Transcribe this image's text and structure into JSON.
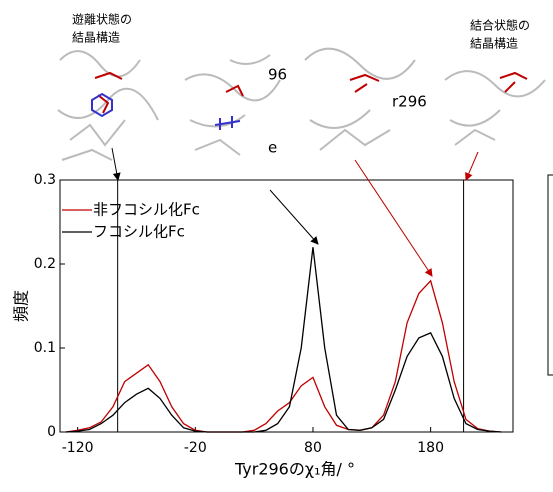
{
  "chart_data": {
    "type": "line",
    "x_label": "Tyr296のχ₁角/ °",
    "y_label": "頻度",
    "annotations": [
      "遊離状態の",
      "結晶構造",
      "結合状態の",
      "結晶構造",
      "96",
      "r296",
      "e"
    ],
    "x": [
      -130,
      -120,
      -110,
      -100,
      -90,
      -80,
      -70,
      -60,
      -50,
      -40,
      -30,
      -20,
      -10,
      0,
      10,
      20,
      30,
      40,
      50,
      60,
      70,
      80,
      90,
      100,
      110,
      120,
      130,
      140,
      150,
      160,
      170,
      180,
      190,
      200,
      210,
      220,
      230,
      240
    ],
    "series": [
      {
        "name": "非フコシル化Fc",
        "color": "#c00000",
        "values": [
          0,
          0.002,
          0.005,
          0.012,
          0.03,
          0.06,
          0.07,
          0.08,
          0.06,
          0.03,
          0.01,
          0.002,
          0,
          0,
          0,
          0,
          0.002,
          0.01,
          0.025,
          0.035,
          0.055,
          0.065,
          0.03,
          0.008,
          0.003,
          0.002,
          0.005,
          0.02,
          0.06,
          0.13,
          0.165,
          0.18,
          0.13,
          0.06,
          0.015,
          0.004,
          0.001,
          0
        ]
      },
      {
        "name": "フコシル化Fc",
        "color": "#000000",
        "values": [
          0,
          0.001,
          0.003,
          0.01,
          0.02,
          0.035,
          0.045,
          0.052,
          0.04,
          0.02,
          0.005,
          0.001,
          0,
          0,
          0,
          0,
          0,
          0.002,
          0.01,
          0.03,
          0.1,
          0.22,
          0.1,
          0.02,
          0.003,
          0.002,
          0.005,
          0.015,
          0.05,
          0.09,
          0.112,
          0.118,
          0.09,
          0.04,
          0.01,
          0.003,
          0.001,
          0
        ]
      }
    ],
    "reference_lines": [
      -86,
      208
    ],
    "xlim": [
      -135,
      250
    ],
    "xticks": [
      -120,
      -20,
      80,
      180
    ],
    "ylim": [
      0,
      0.3
    ],
    "yticks": [
      0,
      0.1,
      0.2,
      0.3
    ],
    "legend": "upper left"
  }
}
